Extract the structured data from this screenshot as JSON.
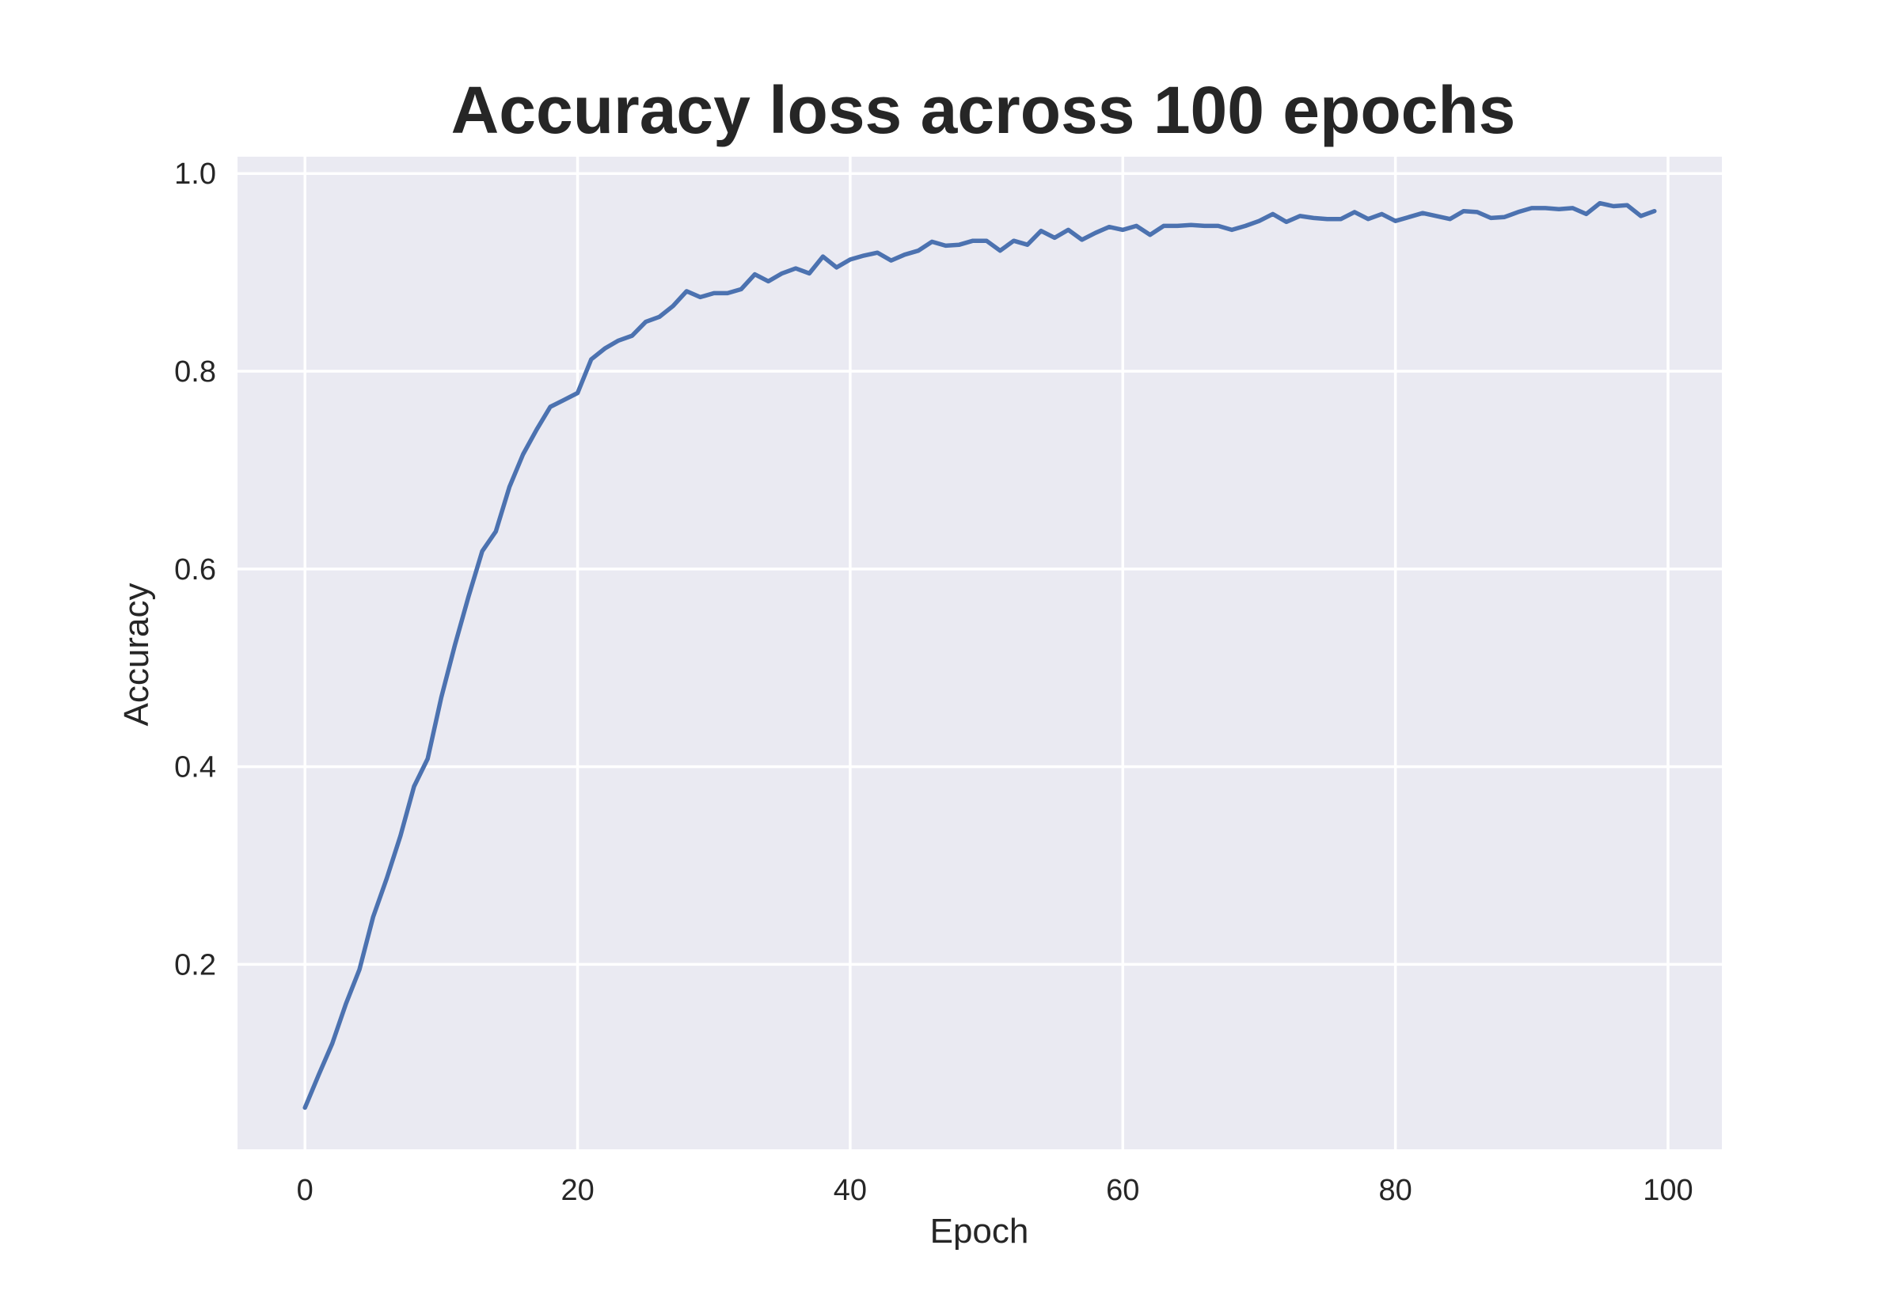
{
  "colors": {
    "plot_background": "#eaeaf2",
    "grid": "#ffffff",
    "line": "#4c72b0",
    "text": "#262626"
  },
  "chart_data": {
    "type": "line",
    "title": "Accuracy loss across 100 epochs",
    "xlabel": "Epoch",
    "ylabel": "Accuracy",
    "xlim": [
      -4.95,
      103.95
    ],
    "ylim": [
      0.013,
      1.017
    ],
    "xticks": [
      0,
      20,
      40,
      60,
      80,
      100
    ],
    "xtick_labels": [
      "0",
      "20",
      "40",
      "60",
      "80",
      "100"
    ],
    "yticks": [
      0.2,
      0.4,
      0.6,
      0.8,
      1.0
    ],
    "ytick_labels": [
      "0.2",
      "0.4",
      "0.6",
      "0.8",
      "1.0"
    ],
    "grid": true,
    "series": [
      {
        "x": [
          0,
          1,
          2,
          3,
          4,
          5,
          6,
          7,
          8,
          9,
          10,
          11,
          12,
          13,
          14,
          15,
          16,
          17,
          18,
          19,
          20,
          21,
          22,
          23,
          24,
          25,
          26,
          27,
          28,
          29,
          30,
          31,
          32,
          33,
          34,
          35,
          36,
          37,
          38,
          39,
          40,
          41,
          42,
          43,
          44,
          45,
          46,
          47,
          48,
          49,
          50,
          51,
          52,
          53,
          54,
          55,
          56,
          57,
          58,
          59,
          60,
          61,
          62,
          63,
          64,
          65,
          66,
          67,
          68,
          69,
          70,
          71,
          72,
          73,
          74,
          75,
          76,
          77,
          78,
          79,
          80,
          81,
          82,
          83,
          84,
          85,
          86,
          87,
          88,
          89,
          90,
          91,
          92,
          93,
          94,
          95,
          96,
          97,
          98,
          99
        ],
        "values": [
          0.055,
          0.088,
          0.12,
          0.16,
          0.195,
          0.248,
          0.287,
          0.33,
          0.38,
          0.408,
          0.47,
          0.523,
          0.572,
          0.618,
          0.638,
          0.683,
          0.716,
          0.741,
          0.764,
          0.771,
          0.778,
          0.812,
          0.823,
          0.831,
          0.836,
          0.85,
          0.855,
          0.866,
          0.881,
          0.875,
          0.879,
          0.879,
          0.883,
          0.898,
          0.891,
          0.899,
          0.904,
          0.899,
          0.916,
          0.905,
          0.913,
          0.917,
          0.92,
          0.912,
          0.918,
          0.922,
          0.931,
          0.927,
          0.928,
          0.932,
          0.932,
          0.922,
          0.932,
          0.928,
          0.942,
          0.935,
          0.943,
          0.933,
          0.94,
          0.946,
          0.943,
          0.947,
          0.938,
          0.947,
          0.947,
          0.948,
          0.947,
          0.947,
          0.943,
          0.947,
          0.952,
          0.959,
          0.951,
          0.957,
          0.955,
          0.954,
          0.954,
          0.961,
          0.954,
          0.959,
          0.952,
          0.956,
          0.96,
          0.957,
          0.954,
          0.962,
          0.961,
          0.955,
          0.956,
          0.961,
          0.965,
          0.965,
          0.964,
          0.965,
          0.959,
          0.97,
          0.967,
          0.968,
          0.957,
          0.962
        ]
      }
    ]
  }
}
